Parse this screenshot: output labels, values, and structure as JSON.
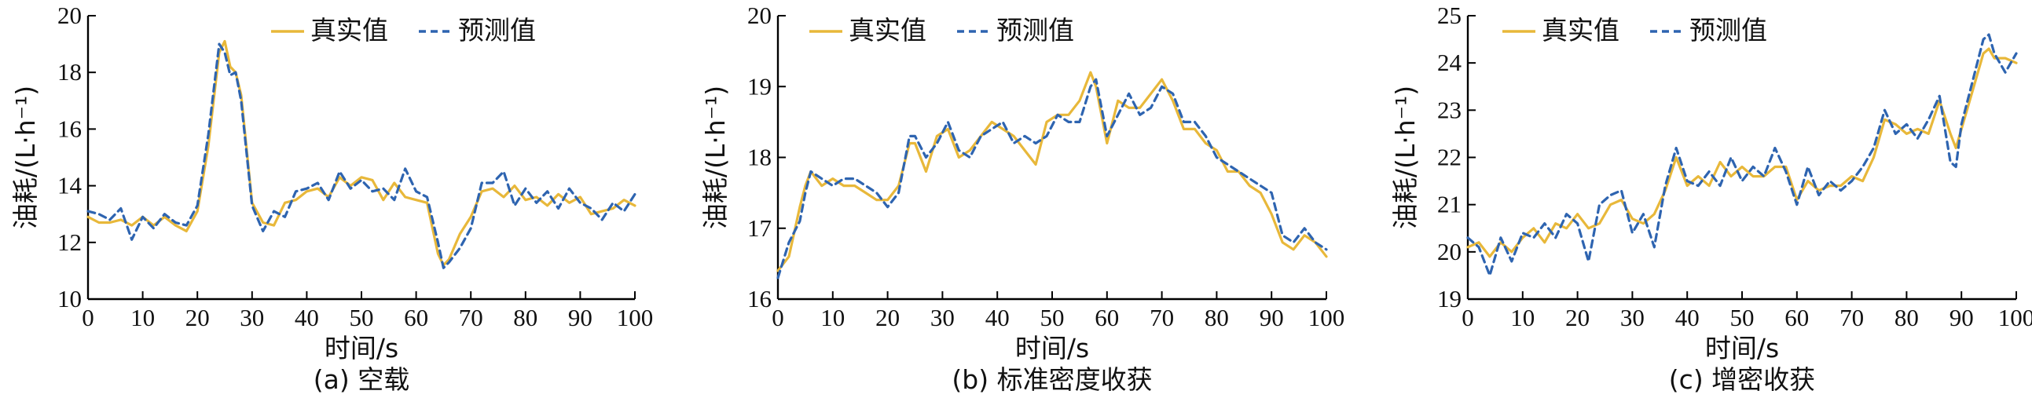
{
  "colors": {
    "actual": "#E8B83A",
    "predicted": "#2E64B0"
  },
  "legend": {
    "actual": "真实值",
    "predicted": "预测值"
  },
  "chart_data": [
    {
      "type": "line",
      "caption": "(a) 空载",
      "xlabel": "时间/s",
      "ylabel": "油耗/(L·h⁻¹)",
      "xlim": [
        0,
        100
      ],
      "ylim": [
        10,
        20
      ],
      "xticks": [
        0,
        10,
        20,
        30,
        40,
        50,
        60,
        70,
        80,
        90,
        100
      ],
      "yticks": [
        10,
        12,
        14,
        16,
        18,
        20
      ],
      "legend_position": "top-right",
      "x": [
        0,
        2,
        4,
        6,
        8,
        10,
        12,
        14,
        16,
        18,
        20,
        22,
        24,
        25,
        26,
        27,
        28,
        30,
        32,
        34,
        36,
        38,
        40,
        42,
        44,
        46,
        48,
        50,
        52,
        54,
        56,
        58,
        60,
        62,
        64,
        65,
        66,
        68,
        70,
        72,
        74,
        76,
        78,
        80,
        82,
        84,
        86,
        88,
        90,
        92,
        94,
        96,
        98,
        100
      ],
      "series": [
        {
          "name": "真实值",
          "values": [
            12.9,
            12.7,
            12.7,
            12.8,
            12.6,
            12.9,
            12.6,
            12.9,
            12.6,
            12.4,
            13.1,
            15.4,
            18.7,
            19.1,
            18.2,
            18.0,
            17.2,
            13.4,
            12.7,
            12.6,
            13.4,
            13.5,
            13.8,
            13.9,
            13.6,
            14.3,
            14.0,
            14.3,
            14.2,
            13.5,
            14.1,
            13.6,
            13.5,
            13.4,
            11.6,
            11.2,
            11.4,
            12.3,
            12.9,
            13.8,
            13.9,
            13.6,
            14.0,
            13.5,
            13.6,
            13.3,
            13.7,
            13.4,
            13.6,
            13.0,
            13.1,
            13.2,
            13.5,
            13.3
          ]
        },
        {
          "name": "预测值",
          "values": [
            13.1,
            13.0,
            12.8,
            13.2,
            12.1,
            12.9,
            12.5,
            13.0,
            12.7,
            12.6,
            13.3,
            15.8,
            19.0,
            18.7,
            17.9,
            18.0,
            17.0,
            13.3,
            12.4,
            13.1,
            12.9,
            13.8,
            13.9,
            14.1,
            13.5,
            14.5,
            13.9,
            14.2,
            13.8,
            13.9,
            13.5,
            14.6,
            13.8,
            13.6,
            12.0,
            11.1,
            11.3,
            11.8,
            12.5,
            14.1,
            14.1,
            14.5,
            13.3,
            13.9,
            13.4,
            13.8,
            13.2,
            13.9,
            13.4,
            13.2,
            12.8,
            13.4,
            13.1,
            13.7
          ]
        }
      ]
    },
    {
      "type": "line",
      "caption": "(b) 标准密度收获",
      "xlabel": "时间/s",
      "ylabel": "油耗/(L·h⁻¹)",
      "xlim": [
        0,
        100
      ],
      "ylim": [
        16,
        20
      ],
      "xticks": [
        0,
        10,
        20,
        30,
        40,
        50,
        60,
        70,
        80,
        90,
        100
      ],
      "yticks": [
        16,
        17,
        18,
        19,
        20
      ],
      "legend_position": "top-left",
      "x": [
        0,
        2,
        4,
        5,
        6,
        8,
        10,
        12,
        14,
        16,
        18,
        20,
        22,
        24,
        25,
        27,
        29,
        31,
        33,
        35,
        37,
        39,
        41,
        43,
        45,
        47,
        49,
        51,
        53,
        55,
        57,
        58,
        60,
        62,
        64,
        66,
        68,
        70,
        72,
        74,
        76,
        78,
        80,
        82,
        84,
        86,
        88,
        90,
        92,
        94,
        96,
        98,
        100
      ],
      "series": [
        {
          "name": "真实值",
          "values": [
            16.4,
            16.6,
            17.3,
            17.6,
            17.8,
            17.6,
            17.7,
            17.6,
            17.6,
            17.5,
            17.4,
            17.4,
            17.6,
            18.2,
            18.2,
            17.8,
            18.3,
            18.4,
            18.0,
            18.1,
            18.3,
            18.5,
            18.4,
            18.3,
            18.1,
            17.9,
            18.5,
            18.6,
            18.6,
            18.8,
            19.2,
            19.0,
            18.2,
            18.8,
            18.7,
            18.7,
            18.9,
            19.1,
            18.8,
            18.4,
            18.4,
            18.2,
            18.1,
            17.8,
            17.8,
            17.6,
            17.5,
            17.2,
            16.8,
            16.7,
            16.9,
            16.8,
            16.6
          ]
        },
        {
          "name": "预测值",
          "values": [
            16.3,
            16.8,
            17.1,
            17.5,
            17.8,
            17.7,
            17.6,
            17.7,
            17.7,
            17.6,
            17.5,
            17.3,
            17.5,
            18.3,
            18.3,
            18.0,
            18.2,
            18.5,
            18.1,
            18.0,
            18.3,
            18.4,
            18.5,
            18.2,
            18.3,
            18.2,
            18.3,
            18.6,
            18.5,
            18.5,
            19.0,
            19.1,
            18.3,
            18.6,
            18.9,
            18.6,
            18.7,
            19.0,
            18.9,
            18.5,
            18.5,
            18.3,
            18.0,
            17.9,
            17.8,
            17.7,
            17.6,
            17.5,
            16.9,
            16.8,
            17.0,
            16.8,
            16.7
          ]
        }
      ]
    },
    {
      "type": "line",
      "caption": "(c) 增密收获",
      "xlabel": "时间/s",
      "ylabel": "油耗/(L·h⁻¹)",
      "xlim": [
        0,
        100
      ],
      "ylim": [
        19,
        25
      ],
      "xticks": [
        0,
        10,
        20,
        30,
        40,
        50,
        60,
        70,
        80,
        90,
        100
      ],
      "yticks": [
        19,
        20,
        21,
        22,
        23,
        24,
        25
      ],
      "legend_position": "top-left",
      "x": [
        0,
        2,
        4,
        6,
        8,
        10,
        12,
        14,
        16,
        18,
        20,
        22,
        24,
        26,
        28,
        30,
        32,
        34,
        36,
        38,
        40,
        42,
        44,
        46,
        48,
        50,
        52,
        54,
        56,
        58,
        60,
        62,
        64,
        66,
        68,
        70,
        72,
        74,
        76,
        78,
        80,
        82,
        84,
        86,
        88,
        89,
        90,
        92,
        94,
        95,
        96,
        98,
        100
      ],
      "series": [
        {
          "name": "真实值",
          "values": [
            20.1,
            20.2,
            19.9,
            20.2,
            20.0,
            20.3,
            20.5,
            20.2,
            20.6,
            20.5,
            20.8,
            20.5,
            20.6,
            21.0,
            21.1,
            20.7,
            20.6,
            20.8,
            21.3,
            22.0,
            21.4,
            21.6,
            21.4,
            21.9,
            21.6,
            21.8,
            21.6,
            21.6,
            21.8,
            21.8,
            21.1,
            21.5,
            21.3,
            21.4,
            21.4,
            21.6,
            21.5,
            22.0,
            22.8,
            22.7,
            22.5,
            22.6,
            22.5,
            23.2,
            22.5,
            22.2,
            22.6,
            23.4,
            24.2,
            24.3,
            24.1,
            24.1,
            24.0
          ]
        },
        {
          "name": "预测值",
          "values": [
            20.3,
            20.1,
            19.5,
            20.3,
            19.8,
            20.4,
            20.3,
            20.6,
            20.3,
            20.8,
            20.6,
            19.8,
            21.0,
            21.2,
            21.3,
            20.4,
            20.8,
            20.1,
            21.4,
            22.2,
            21.5,
            21.4,
            21.7,
            21.4,
            22.0,
            21.5,
            21.8,
            21.6,
            22.2,
            21.7,
            21.0,
            21.8,
            21.2,
            21.5,
            21.3,
            21.5,
            21.8,
            22.2,
            23.0,
            22.5,
            22.7,
            22.4,
            22.8,
            23.3,
            21.9,
            21.8,
            22.7,
            23.6,
            24.5,
            24.6,
            24.2,
            23.8,
            24.2
          ]
        }
      ]
    }
  ]
}
